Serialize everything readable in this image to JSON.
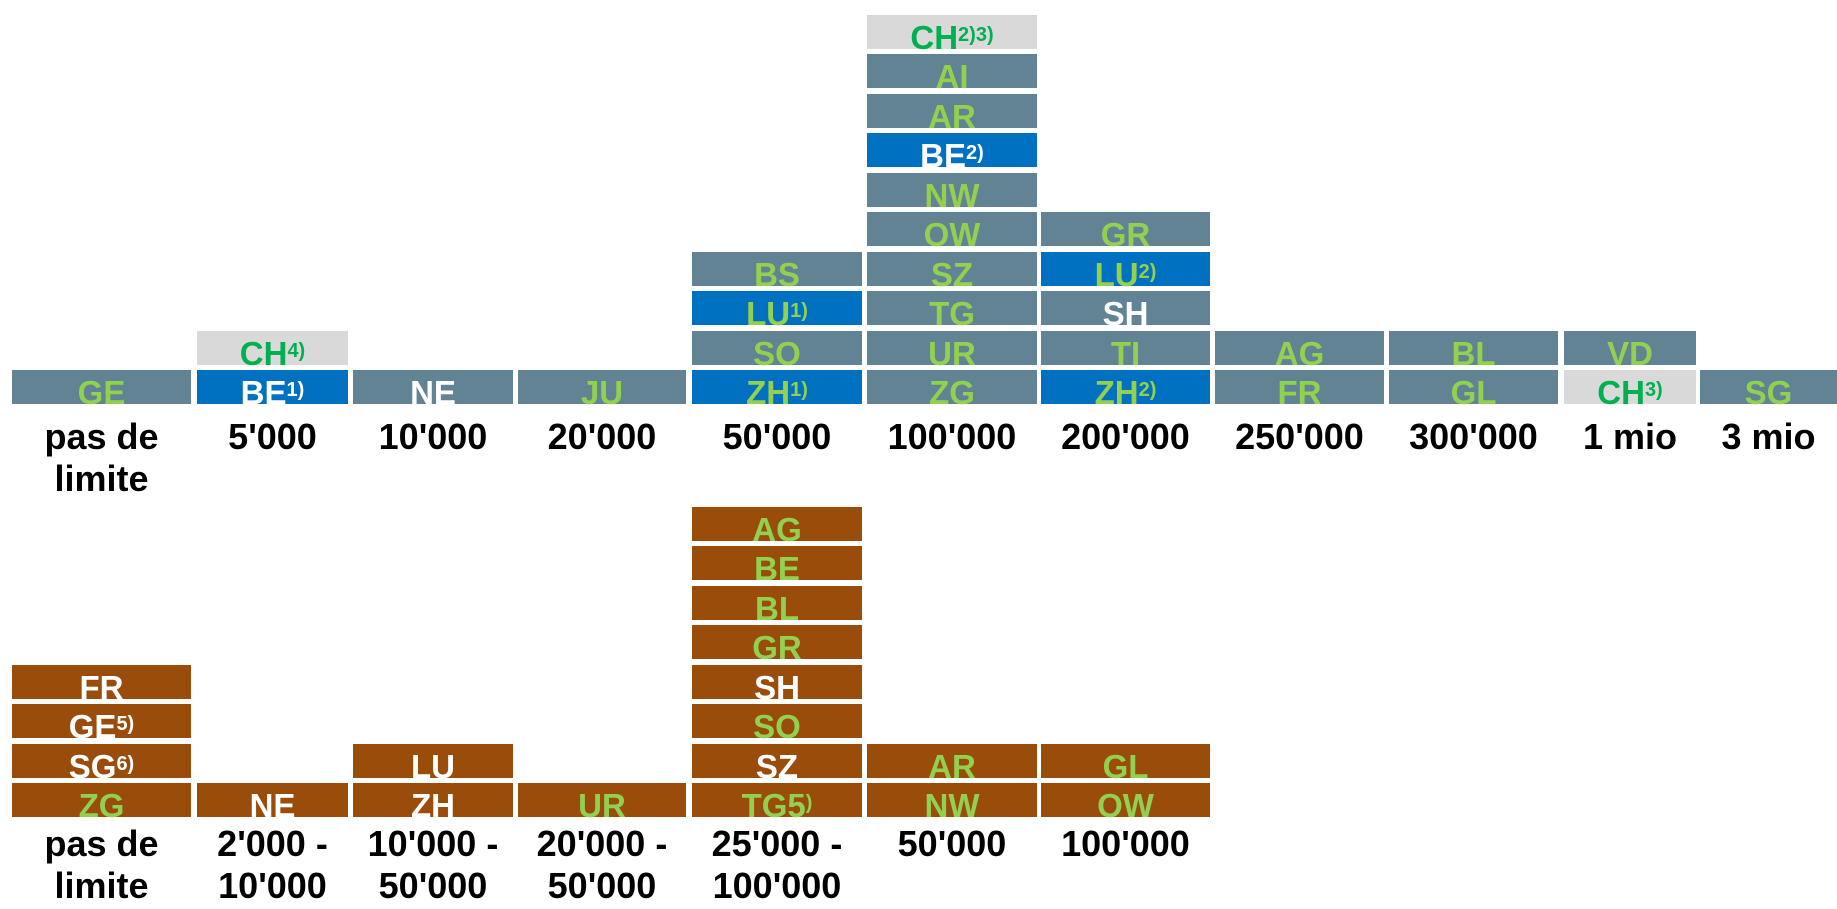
{
  "colors": {
    "grey": "#628394",
    "blue": "#0070c0",
    "light": "#d9d9d9",
    "brown": "#9a4c0a",
    "text_green": "#92d050",
    "text_white": "#ffffff",
    "text_bright_green": "#00b050",
    "axis_text": "#000000"
  },
  "top_chart": {
    "columns": [
      {
        "label_lines": [
          "pas de",
          "limite"
        ],
        "boxes": [
          {
            "code": "GE",
            "sup": "",
            "fill": "grey",
            "text": "green"
          }
        ]
      },
      {
        "label_lines": [
          "5'000"
        ],
        "boxes": [
          {
            "code": "BE",
            "sup": "1)",
            "fill": "blue",
            "text": "white"
          },
          {
            "code": "CH",
            "sup": "4)",
            "fill": "light",
            "text": "bright"
          }
        ]
      },
      {
        "label_lines": [
          "10'000"
        ],
        "boxes": [
          {
            "code": "NE",
            "sup": "",
            "fill": "grey",
            "text": "white"
          }
        ]
      },
      {
        "label_lines": [
          "20'000"
        ],
        "boxes": [
          {
            "code": "JU",
            "sup": "",
            "fill": "grey",
            "text": "green"
          }
        ]
      },
      {
        "label_lines": [
          "50'000"
        ],
        "boxes": [
          {
            "code": "ZH",
            "sup": "1)",
            "fill": "blue",
            "text": "green"
          },
          {
            "code": "SO",
            "sup": "",
            "fill": "grey",
            "text": "green"
          },
          {
            "code": "LU",
            "sup": "1)",
            "fill": "blue",
            "text": "green"
          },
          {
            "code": "BS",
            "sup": "",
            "fill": "grey",
            "text": "green"
          }
        ]
      },
      {
        "label_lines": [
          "100'000"
        ],
        "boxes": [
          {
            "code": "ZG",
            "sup": "",
            "fill": "grey",
            "text": "green"
          },
          {
            "code": "UR",
            "sup": "",
            "fill": "grey",
            "text": "green"
          },
          {
            "code": "TG",
            "sup": "",
            "fill": "grey",
            "text": "green"
          },
          {
            "code": "SZ",
            "sup": "",
            "fill": "grey",
            "text": "green"
          },
          {
            "code": "OW",
            "sup": "",
            "fill": "grey",
            "text": "green"
          },
          {
            "code": "NW",
            "sup": "",
            "fill": "grey",
            "text": "green"
          },
          {
            "code": "BE",
            "sup": "2)",
            "fill": "blue",
            "text": "white"
          },
          {
            "code": "AR",
            "sup": "",
            "fill": "grey",
            "text": "green"
          },
          {
            "code": "AI",
            "sup": "",
            "fill": "grey",
            "text": "green"
          },
          {
            "code": "CH",
            "sup": "2)3)",
            "fill": "light",
            "text": "bright"
          }
        ]
      },
      {
        "label_lines": [
          "200'000"
        ],
        "boxes": [
          {
            "code": "ZH",
            "sup": "2)",
            "fill": "blue",
            "text": "green"
          },
          {
            "code": "TI",
            "sup": "",
            "fill": "grey",
            "text": "green"
          },
          {
            "code": "SH",
            "sup": "",
            "fill": "grey",
            "text": "white"
          },
          {
            "code": "LU",
            "sup": "2)",
            "fill": "blue",
            "text": "green"
          },
          {
            "code": "GR",
            "sup": "",
            "fill": "grey",
            "text": "green"
          }
        ]
      },
      {
        "label_lines": [
          "250'000"
        ],
        "boxes": [
          {
            "code": "FR",
            "sup": "",
            "fill": "grey",
            "text": "green"
          },
          {
            "code": "AG",
            "sup": "",
            "fill": "grey",
            "text": "green"
          }
        ]
      },
      {
        "label_lines": [
          "300'000"
        ],
        "boxes": [
          {
            "code": "GL",
            "sup": "",
            "fill": "grey",
            "text": "green"
          },
          {
            "code": "BL",
            "sup": "",
            "fill": "grey",
            "text": "green"
          }
        ]
      },
      {
        "label_lines": [
          "1 mio"
        ],
        "boxes": [
          {
            "code": "CH",
            "sup": "3)",
            "fill": "light",
            "text": "bright"
          },
          {
            "code": "VD",
            "sup": "",
            "fill": "grey",
            "text": "green"
          }
        ]
      },
      {
        "label_lines": [
          "3 mio"
        ],
        "boxes": [
          {
            "code": "SG",
            "sup": "",
            "fill": "grey",
            "text": "green"
          }
        ]
      }
    ]
  },
  "bottom_chart": {
    "columns": [
      {
        "label_lines": [
          "pas de",
          "limite"
        ],
        "boxes": [
          {
            "code": "ZG",
            "sup": "",
            "fill": "brown",
            "text": "green"
          },
          {
            "code": "SG",
            "sup": "6)",
            "fill": "brown",
            "text": "white"
          },
          {
            "code": "GE",
            "sup": "5)",
            "fill": "brown",
            "text": "white"
          },
          {
            "code": "FR",
            "sup": "",
            "fill": "brown",
            "text": "white"
          }
        ]
      },
      {
        "label_lines": [
          "2'000 -",
          "10'000"
        ],
        "boxes": [
          {
            "code": "NE",
            "sup": "",
            "fill": "brown",
            "text": "white"
          }
        ]
      },
      {
        "label_lines": [
          "10'000 -",
          "50'000"
        ],
        "boxes": [
          {
            "code": "ZH",
            "sup": "",
            "fill": "brown",
            "text": "white"
          },
          {
            "code": "LU",
            "sup": "",
            "fill": "brown",
            "text": "white"
          }
        ]
      },
      {
        "label_lines": [
          "20'000 -",
          "50'000"
        ],
        "boxes": [
          {
            "code": "UR",
            "sup": "",
            "fill": "brown",
            "text": "green"
          }
        ]
      },
      {
        "label_lines": [
          "25'000 -",
          "100'000"
        ],
        "boxes": [
          {
            "code": "TG5",
            "sup": ")",
            "fill": "brown",
            "text": "green"
          },
          {
            "code": "SZ",
            "sup": "",
            "fill": "brown",
            "text": "white"
          },
          {
            "code": "SO",
            "sup": "",
            "fill": "brown",
            "text": "green"
          },
          {
            "code": "SH",
            "sup": "",
            "fill": "brown",
            "text": "white"
          },
          {
            "code": "GR",
            "sup": "",
            "fill": "brown",
            "text": "green"
          },
          {
            "code": "BL",
            "sup": "",
            "fill": "brown",
            "text": "green"
          },
          {
            "code": "BE",
            "sup": "",
            "fill": "brown",
            "text": "green"
          },
          {
            "code": "AG",
            "sup": "",
            "fill": "brown",
            "text": "green"
          }
        ]
      },
      {
        "label_lines": [
          "50'000"
        ],
        "boxes": [
          {
            "code": "NW",
            "sup": "",
            "fill": "brown",
            "text": "green"
          },
          {
            "code": "AR",
            "sup": "",
            "fill": "brown",
            "text": "green"
          }
        ]
      },
      {
        "label_lines": [
          "100'000"
        ],
        "boxes": [
          {
            "code": "OW",
            "sup": "",
            "fill": "brown",
            "text": "green"
          },
          {
            "code": "GL",
            "sup": "",
            "fill": "brown",
            "text": "green"
          }
        ]
      }
    ]
  }
}
